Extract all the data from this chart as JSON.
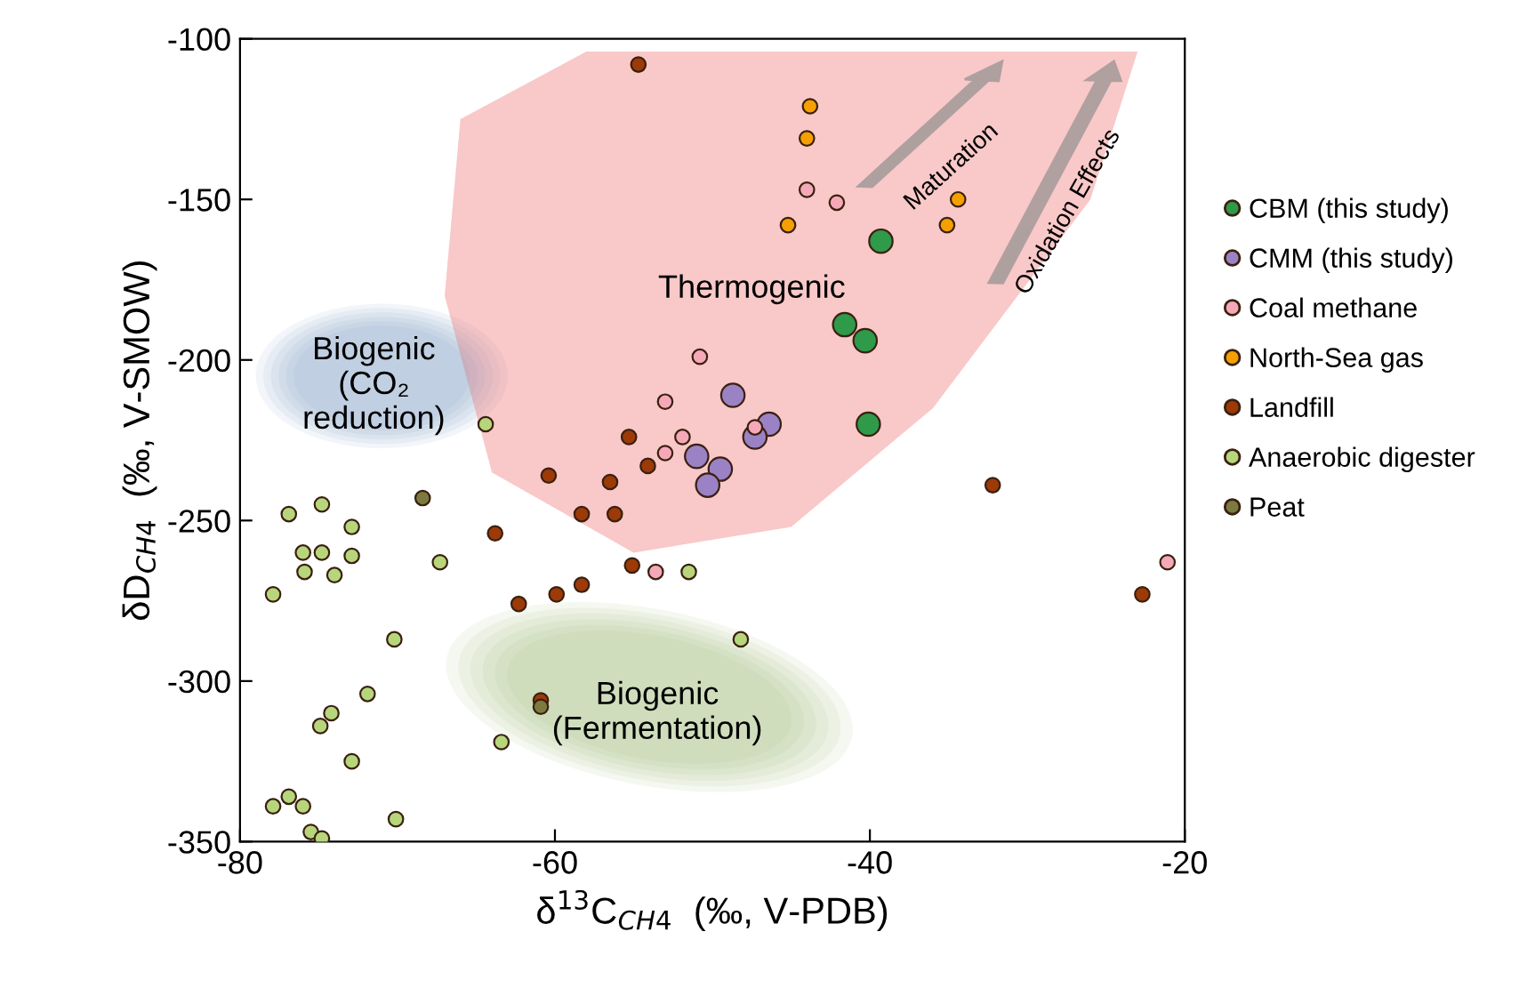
{
  "chart_data": {
    "type": "scatter",
    "xlabel": "δ$^{13}$C$_{CH4}$  (‰, V-PDB)",
    "ylabel": "δD$_{CH4}$  (‰, V-SMOW)",
    "xlim": [
      -80,
      -20
    ],
    "xticks": [
      -80,
      -60,
      -40,
      -20
    ],
    "ylim": [
      -350,
      -100
    ],
    "yticks": [
      -350,
      -300,
      -250,
      -200,
      -150,
      -100
    ],
    "grid": false,
    "legend": "right",
    "marker": "circle",
    "annotations": [
      "Thermogenic",
      "Biogenic\n(CO₂\nreduction)",
      "Biogenic\n(Fermentation)",
      "Maturation",
      "Oxidation Effects"
    ],
    "series": [
      {
        "name": "CBM (this study)",
        "color": "#2e9a4a",
        "x": [
          -39.3,
          -41.6,
          -40.3,
          -40.1
        ],
        "values": [
          -163,
          -189,
          -194,
          -220
        ]
      },
      {
        "name": "CMM (this study)",
        "color": "#9b82c4",
        "x": [
          -48.7,
          -46.4,
          -47.3,
          -51.0,
          -49.5,
          -50.3
        ],
        "values": [
          -211,
          -220,
          -224,
          -230,
          -234,
          -239
        ]
      },
      {
        "name": "Coal methane",
        "color": "#f5a9b8",
        "x": [
          -44.0,
          -42.1,
          -50.8,
          -53.0,
          -51.9,
          -53.0,
          -47.3,
          -53.6,
          -21.1
        ],
        "values": [
          -147,
          -151,
          -199,
          -213,
          -224,
          -229,
          -221,
          -266,
          -263
        ]
      },
      {
        "name": "North-Sea gas",
        "color": "#f5a000",
        "x": [
          -43.8,
          -44.0,
          -45.2,
          -34.4,
          -35.1
        ],
        "values": [
          -121,
          -131,
          -158,
          -150,
          -158
        ]
      },
      {
        "name": "Landfill",
        "color": "#9c3a08",
        "x": [
          -54.7,
          -55.3,
          -54.1,
          -60.4,
          -56.5,
          -58.3,
          -56.2,
          -63.8,
          -55.1,
          -62.3,
          -59.9,
          -58.3,
          -32.2,
          -22.7,
          -60.9
        ],
        "values": [
          -108,
          -224,
          -233,
          -236,
          -238,
          -248,
          -248,
          -254,
          -264,
          -276,
          -273,
          -270,
          -239,
          -273,
          -306
        ]
      },
      {
        "name": "Anaerobic digester",
        "color": "#b7d67c",
        "x": [
          -77.9,
          -76.9,
          -74.8,
          -76.0,
          -74.8,
          -75.9,
          -74.0,
          -72.9,
          -72.9,
          -67.3,
          -64.4,
          -70.2,
          -71.9,
          -74.2,
          -74.9,
          -72.9,
          -63.4,
          -77.9,
          -76.9,
          -76.0,
          -70.1,
          -75.5,
          -74.8,
          -51.5,
          -48.2
        ],
        "values": [
          -273,
          -248,
          -245,
          -260,
          -260,
          -266,
          -267,
          -252,
          -261,
          -263,
          -220,
          -287,
          -304,
          -310,
          -314,
          -325,
          -319,
          -339,
          -336,
          -339,
          -343,
          -347,
          -349,
          -266,
          -287
        ]
      },
      {
        "name": "Peat",
        "color": "#7d7a40",
        "x": [
          -68.4,
          -60.9
        ],
        "values": [
          -243,
          -308
        ]
      }
    ]
  }
}
